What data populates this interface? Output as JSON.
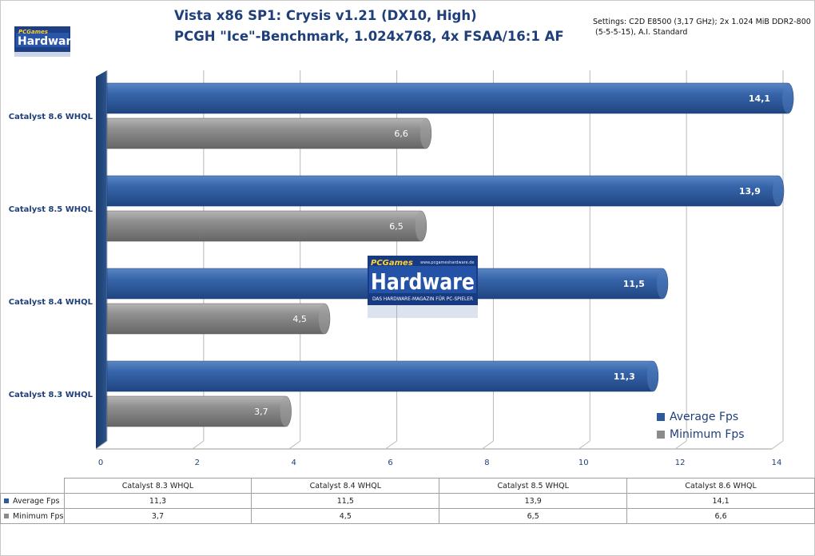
{
  "title_lines": [
    "Vista x86 SP1: Crysis v1.21 (DX10, High)",
    "PCGH \"Ice\"-Benchmark, 1.024x768,  4x FSAA/16:1 AF"
  ],
  "settings_lines": [
    "Settings: C2D E8500 (3,17 GHz);  2x 1.024 MiB DDR2-800",
    "(5-5-5-15), A.I. Standard"
  ],
  "logo": {
    "brand_top": "PCGames",
    "brand_main": "Hardware",
    "tagline": "DAS HARDWARE-MAGAZIN FÜR PC-SPIELER",
    "url": "www.pcgameshardware.de"
  },
  "colors": {
    "average": "#2e5a9c",
    "minimum": "#8a8a8a",
    "title": "#1f3f7a"
  },
  "chart_data": {
    "type": "bar",
    "orientation": "horizontal",
    "categories": [
      "Catalyst 8.3  WHQL",
      "Catalyst 8.4  WHQL",
      "Catalyst 8.5  WHQL",
      "Catalyst 8.6  WHQL"
    ],
    "series": [
      {
        "name": "Average Fps",
        "values": [
          11.3,
          11.5,
          13.9,
          14.1
        ],
        "labels": [
          "11,3",
          "11,5",
          "13,9",
          "14,1"
        ]
      },
      {
        "name": "Minimum  Fps",
        "values": [
          3.7,
          4.5,
          6.5,
          6.6
        ],
        "labels": [
          "3,7",
          "4,5",
          "6,5",
          "6,6"
        ]
      }
    ],
    "xlim": [
      0,
      14
    ],
    "xticks": [
      "0",
      "2",
      "4",
      "6",
      "8",
      "10",
      "12",
      "14"
    ],
    "grid": true,
    "legend_position": "bottom-right"
  },
  "table": {
    "headers": [
      "Catalyst 8.3 WHQL",
      "Catalyst 8.4 WHQL",
      "Catalyst 8.5 WHQL",
      "Catalyst 8.6 WHQL"
    ],
    "rows": [
      {
        "label": "Average Fps",
        "cells": [
          "11,3",
          "11,5",
          "13,9",
          "14,1"
        ]
      },
      {
        "label": "Minimum  Fps",
        "cells": [
          "3,7",
          "4,5",
          "6,5",
          "6,6"
        ]
      }
    ]
  }
}
